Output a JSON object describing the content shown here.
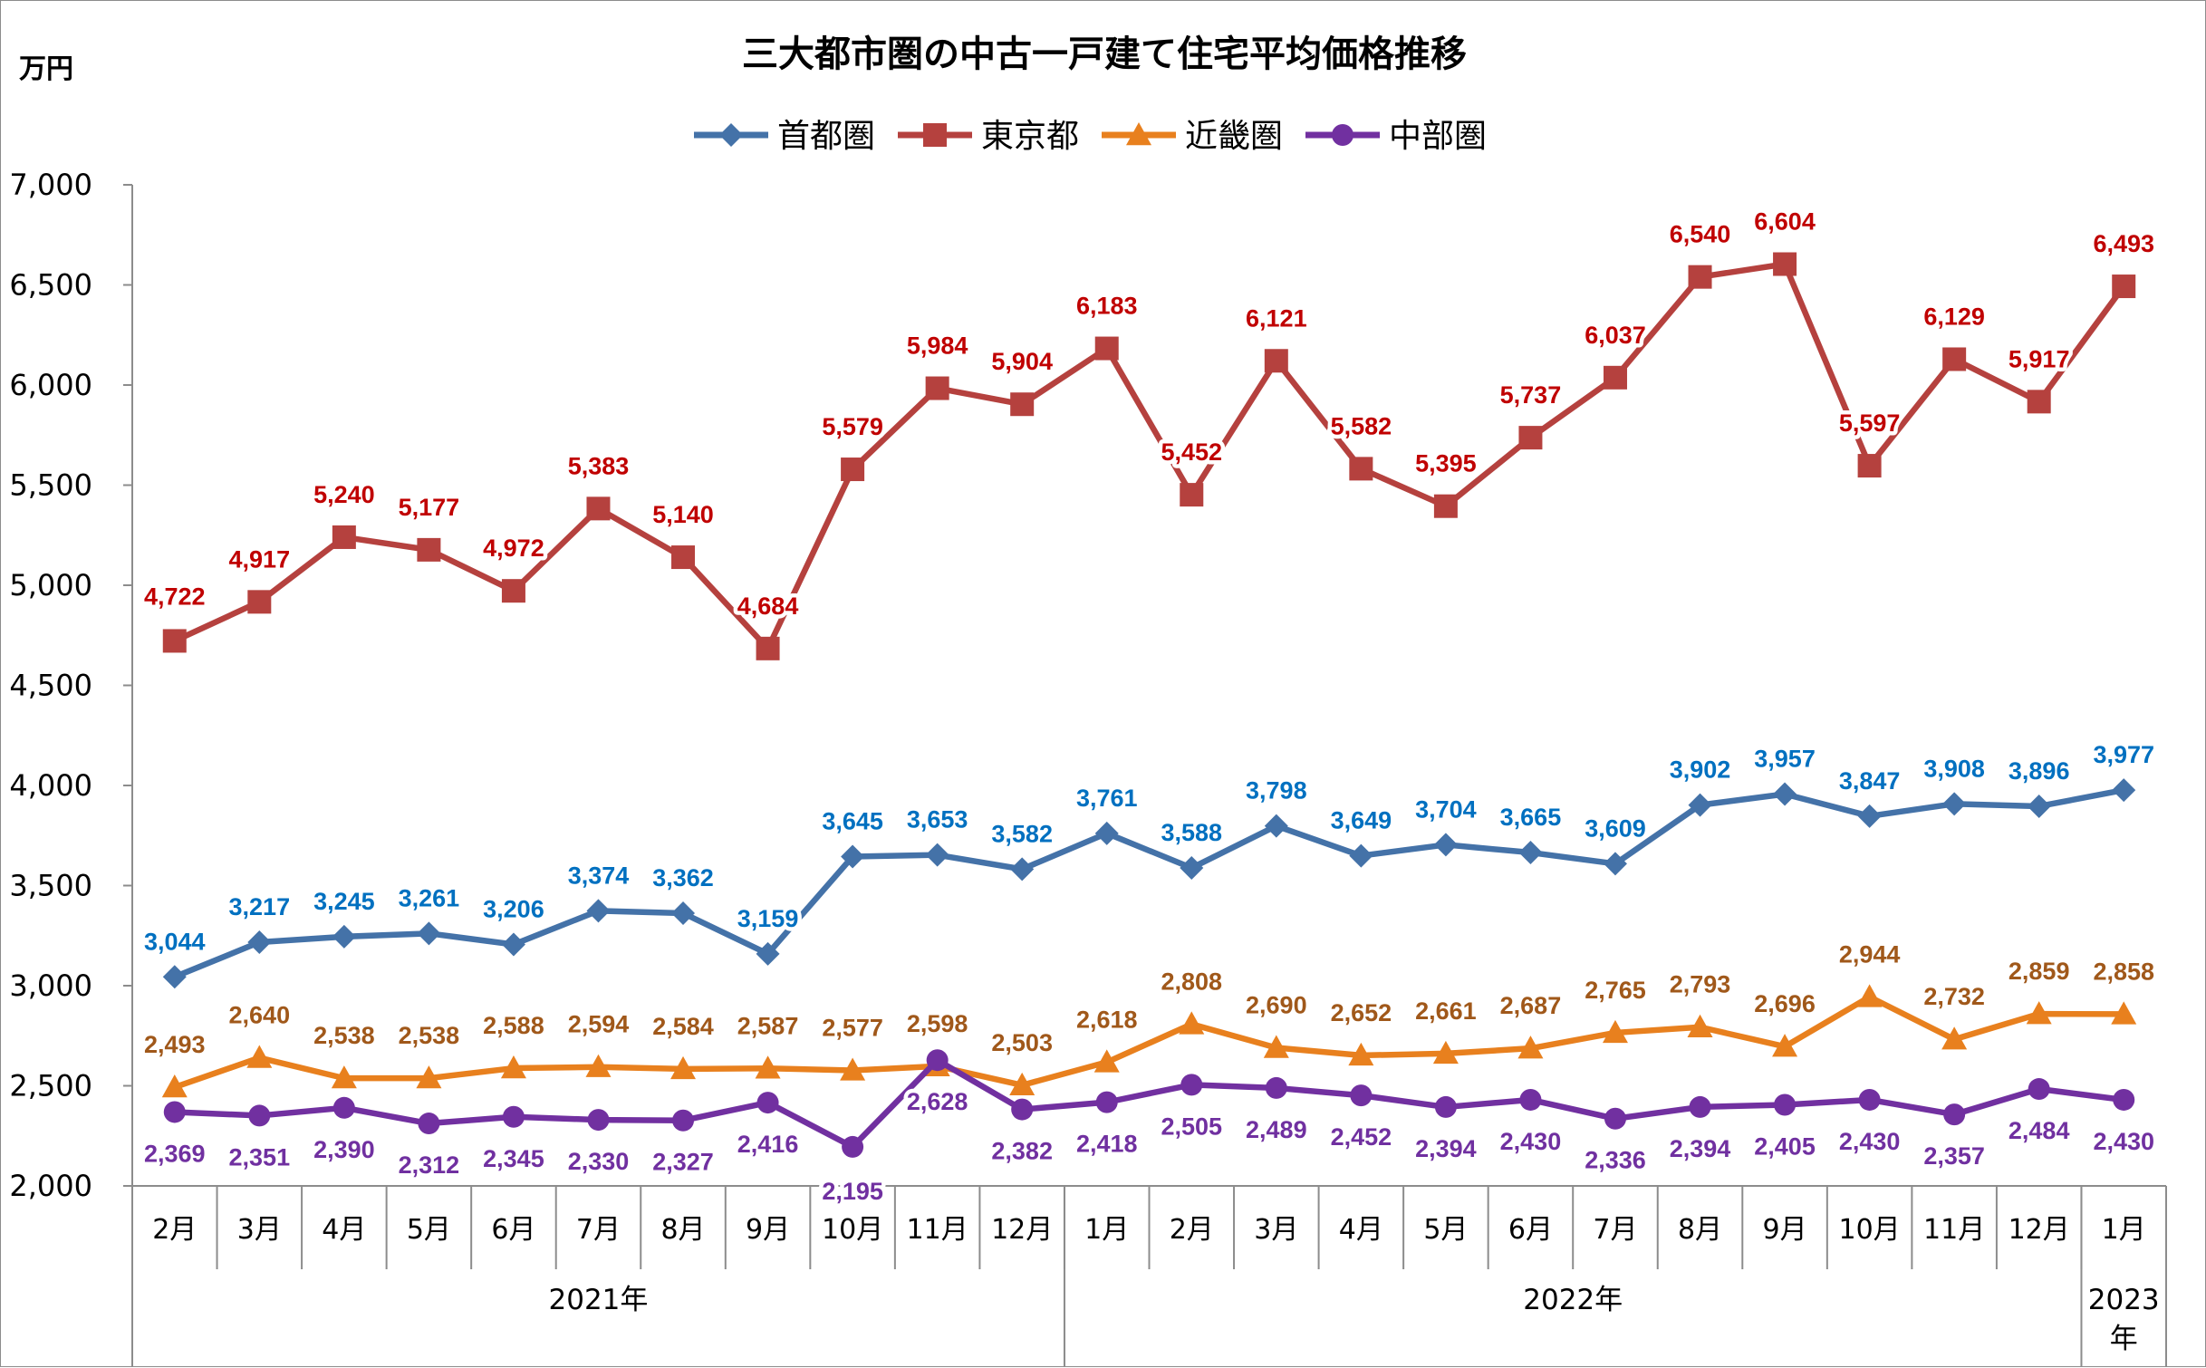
{
  "chart_data": {
    "type": "line",
    "title": "三大都市圏の中古一戸建て住宅平均価格推移",
    "ylabel": "万円",
    "ylim": [
      2000,
      7000
    ],
    "yticks": [
      "2,000",
      "2,500",
      "3,000",
      "3,500",
      "4,000",
      "4,500",
      "5,000",
      "5,500",
      "6,000",
      "6,500",
      "7,000"
    ],
    "categories": [
      "2月",
      "3月",
      "4月",
      "5月",
      "6月",
      "7月",
      "8月",
      "9月",
      "10月",
      "11月",
      "12月",
      "1月",
      "2月",
      "3月",
      "4月",
      "5月",
      "6月",
      "7月",
      "8月",
      "9月",
      "10月",
      "11月",
      "12月",
      "1月"
    ],
    "year_groups": [
      {
        "label": "2021年",
        "span": 11
      },
      {
        "label": "2022年",
        "span": 12
      },
      {
        "label_line1": "2023",
        "label_line2": "年",
        "span": 1
      }
    ],
    "legend_position": "top",
    "grid": false,
    "series": [
      {
        "name": "首都圏",
        "color": "#4472a8",
        "label_color": "#0070c0",
        "marker": "diamond",
        "values": [
          3044,
          3217,
          3245,
          3261,
          3206,
          3374,
          3362,
          3159,
          3645,
          3653,
          3582,
          3761,
          3588,
          3798,
          3649,
          3704,
          3665,
          3609,
          3902,
          3957,
          3847,
          3908,
          3896,
          3977
        ],
        "labels": [
          "3,044",
          "3,217",
          "3,245",
          "3,261",
          "3,206",
          "3,374",
          "3,362",
          "3,159",
          "3,645",
          "3,653",
          "3,582",
          "3,761",
          "3,588",
          "3,798",
          "3,649",
          "3,704",
          "3,665",
          "3,609",
          "3,902",
          "3,957",
          "3,847",
          "3,908",
          "3,896",
          "3,977"
        ]
      },
      {
        "name": "東京都",
        "color": "#b5413e",
        "label_color": "#c00000",
        "marker": "square",
        "values": [
          4722,
          4917,
          5240,
          5177,
          4972,
          5383,
          5140,
          4684,
          5579,
          5984,
          5904,
          6183,
          5452,
          6121,
          5582,
          5395,
          5737,
          6037,
          6540,
          6604,
          5597,
          6129,
          5917,
          6493
        ],
        "labels": [
          "4,722",
          "4,917",
          "5,240",
          "5,177",
          "4,972",
          "5,383",
          "5,140",
          "4,684",
          "5,579",
          "5,984",
          "5,904",
          "6,183",
          "5,452",
          "6,121",
          "5,582",
          "5,395",
          "5,737",
          "6,037",
          "6,540",
          "6,604",
          "5,597",
          "6,129",
          "5,917",
          "6,493"
        ]
      },
      {
        "name": "近畿圏",
        "color": "#e8801e",
        "label_color": "#a0581a",
        "marker": "triangle",
        "values": [
          2493,
          2640,
          2538,
          2538,
          2588,
          2594,
          2584,
          2587,
          2577,
          2598,
          2503,
          2618,
          2808,
          2690,
          2652,
          2661,
          2687,
          2765,
          2793,
          2696,
          2944,
          2732,
          2859,
          2858
        ],
        "labels": [
          "2,493",
          "2,640",
          "2,538",
          "2,538",
          "2,588",
          "2,594",
          "2,584",
          "2,587",
          "2,577",
          "2,598",
          "2,503",
          "2,618",
          "2,808",
          "2,690",
          "2,652",
          "2,661",
          "2,687",
          "2,765",
          "2,793",
          "2,696",
          "2,944",
          "2,732",
          "2,859",
          "2,858"
        ]
      },
      {
        "name": "中部圏",
        "color": "#7130a0",
        "label_color": "#7030a0",
        "marker": "circle",
        "values": [
          2369,
          2351,
          2390,
          2312,
          2345,
          2330,
          2327,
          2416,
          2195,
          2628,
          2382,
          2418,
          2505,
          2489,
          2452,
          2394,
          2430,
          2336,
          2394,
          2405,
          2430,
          2357,
          2484,
          2430
        ],
        "labels": [
          "2,369",
          "2,351",
          "2,390",
          "2,312",
          "2,345",
          "2,330",
          "2,327",
          "2,416",
          "2,195",
          "2,628",
          "2,382",
          "2,418",
          "2,505",
          "2,489",
          "2,452",
          "2,394",
          "2,430",
          "2,336",
          "2,394",
          "2,405",
          "2,430",
          "2,357",
          "2,484",
          "2,430"
        ]
      }
    ]
  }
}
